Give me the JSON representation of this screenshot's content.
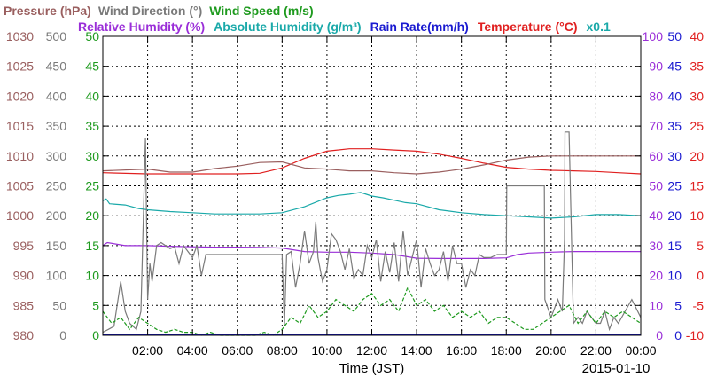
{
  "chart_data": {
    "type": "line",
    "header_row1": [
      {
        "text": "Pressure (hPa)",
        "color": "#9a5f5f"
      },
      {
        "text": "Wind Direction (°)",
        "color": "#7a7a7a"
      },
      {
        "text": "Wind Speed (m/s)",
        "color": "#1e9a1e"
      }
    ],
    "header_row2": [
      {
        "text": "Relative Humidity (%)",
        "color": "#9a2ed8"
      },
      {
        "text": "Absolute Humidity (g/m³)",
        "color": "#1aa9a9"
      },
      {
        "text": "Rain Rate(mm/h)",
        "color": "#1a1ad0"
      },
      {
        "text": "Temperature (°C)",
        "color": "#e02020"
      },
      {
        "text": "x0.1",
        "color": "#1aa9a9"
      }
    ],
    "xlabel": "Time (JST)",
    "date_label": "2015-01-10",
    "x_ticks": [
      "02:00",
      "04:00",
      "06:00",
      "08:00",
      "10:00",
      "12:00",
      "14:00",
      "16:00",
      "18:00",
      "20:00",
      "22:00",
      "00:00"
    ],
    "x_range_hours": [
      0,
      24
    ],
    "grid": true,
    "axes": {
      "pressure": {
        "color": "#9a5f5f",
        "range": [
          980,
          1030
        ],
        "ticks": [
          "980",
          "985",
          "990",
          "995",
          "1000",
          "1005",
          "1010",
          "1015",
          "1020",
          "1025",
          "1030"
        ]
      },
      "wind_direction": {
        "color": "#7a7a7a",
        "range": [
          0,
          500
        ],
        "ticks": [
          "0",
          "50",
          "100",
          "150",
          "200",
          "250",
          "300",
          "350",
          "400",
          "450",
          "500"
        ]
      },
      "wind_speed": {
        "color": "#1e9a1e",
        "range": [
          0,
          50
        ],
        "ticks": [
          "0",
          "5",
          "10",
          "15",
          "20",
          "25",
          "30",
          "35",
          "40",
          "45",
          "50"
        ]
      },
      "relative_humidity": {
        "color": "#9a2ed8",
        "range": [
          0,
          100
        ],
        "ticks": [
          "0",
          "10",
          "20",
          "30",
          "40",
          "50",
          "60",
          "70",
          "80",
          "90",
          "100"
        ]
      },
      "rain_rate": {
        "color": "#1a1ad0",
        "range": [
          0,
          50
        ],
        "ticks": [
          "0",
          "5",
          "10",
          "15",
          "20",
          "25",
          "30",
          "35",
          "40",
          "45",
          "50"
        ]
      },
      "temperature": {
        "color": "#e02020",
        "range": [
          -10,
          40
        ],
        "ticks": [
          "-10",
          "-5",
          "0",
          "5",
          "10",
          "15",
          "20",
          "25",
          "30",
          "35",
          "40"
        ]
      }
    },
    "series": [
      {
        "name": "Temperature (°C)",
        "axis": "temperature",
        "color": "#e02020",
        "style": "line",
        "x": [
          0,
          2,
          4,
          6,
          7,
          8,
          9,
          10,
          11,
          12,
          13,
          14,
          15,
          16,
          17,
          18,
          19,
          20,
          21,
          22,
          23,
          24
        ],
        "y": [
          17.2,
          17.0,
          17.0,
          17.0,
          17.1,
          18.0,
          19.6,
          20.8,
          21.2,
          21.2,
          21.0,
          20.8,
          20.3,
          19.6,
          18.8,
          18.1,
          17.8,
          17.6,
          17.5,
          17.4,
          17.2,
          17.0
        ]
      },
      {
        "name": "Pressure (hPa)",
        "axis": "pressure",
        "color": "#9a5f5f",
        "style": "line",
        "x": [
          0,
          2,
          3,
          4,
          5,
          6,
          7,
          8,
          9,
          10,
          11,
          12,
          13,
          14,
          15,
          16,
          17,
          18,
          19,
          20,
          21,
          22,
          23,
          24
        ],
        "y": [
          1007.5,
          1007.8,
          1007.3,
          1007.3,
          1007.9,
          1008.3,
          1008.9,
          1009.0,
          1008.0,
          1007.8,
          1007.5,
          1007.5,
          1007.2,
          1007.0,
          1007.3,
          1007.8,
          1008.5,
          1009.3,
          1009.8,
          1010.0,
          1010.0,
          1010.0,
          1010.0,
          1010.0
        ]
      },
      {
        "name": "Absolute Humidity (g/m³) x0.1",
        "axis": "wind_speed",
        "color": "#1aa9a9",
        "style": "line",
        "x": [
          0,
          0.15,
          0.3,
          1,
          1.6,
          2,
          3,
          4,
          5,
          6,
          7,
          8,
          9,
          10,
          10.5,
          11,
          11.5,
          12,
          12.5,
          13,
          13.5,
          14,
          15,
          16,
          17,
          18,
          19,
          20,
          21,
          22,
          23,
          24
        ],
        "y": [
          22.5,
          22.8,
          22.0,
          21.8,
          21.2,
          21.0,
          20.7,
          20.5,
          20.3,
          20.3,
          20.3,
          20.5,
          21.5,
          23.0,
          23.4,
          23.6,
          23.9,
          23.3,
          23.0,
          22.6,
          22.2,
          22.0,
          21.0,
          20.5,
          20.2,
          20.0,
          19.8,
          19.6,
          19.8,
          20.2,
          20.2,
          20.0
        ]
      },
      {
        "name": "Relative Humidity (%)",
        "axis": "relative_humidity",
        "color": "#9a2ed8",
        "style": "line",
        "x": [
          0,
          0.2,
          1,
          2,
          3,
          4,
          5,
          6,
          7,
          8,
          8.5,
          9,
          10,
          11,
          12,
          13,
          14,
          15,
          16,
          17,
          18,
          18.5,
          19,
          20,
          21,
          22,
          23,
          24
        ],
        "y": [
          30,
          31,
          30,
          30,
          29.8,
          29.6,
          29.5,
          29.5,
          29.4,
          29.2,
          28.6,
          28,
          27.8,
          27.8,
          27.5,
          27,
          25.8,
          25.7,
          25.7,
          25.7,
          25.9,
          27,
          27.5,
          27.8,
          28,
          28,
          28,
          28
        ]
      },
      {
        "name": "Wind Direction (°)",
        "axis": "wind_direction",
        "color": "#7a7a7a",
        "style": "line",
        "x": [
          0,
          0.25,
          0.5,
          0.8,
          1,
          1.2,
          1.5,
          1.7,
          1.9,
          2.0,
          2.1,
          2.2,
          2.4,
          2.6,
          2.8,
          3.0,
          3.2,
          3.4,
          3.6,
          3.8,
          4.0,
          4.2,
          4.4,
          4.6,
          5.0,
          5.5,
          6.0,
          7.0,
          8.0,
          8.1,
          8.2,
          8.4,
          8.6,
          8.8,
          9.0,
          9.2,
          9.4,
          9.5,
          9.6,
          9.8,
          10.0,
          10.2,
          10.4,
          10.6,
          10.8,
          11.0,
          11.2,
          11.4,
          11.6,
          11.8,
          12.0,
          12.2,
          12.4,
          12.6,
          12.8,
          13.0,
          13.2,
          13.4,
          13.6,
          13.8,
          14.0,
          14.2,
          14.4,
          14.6,
          14.8,
          15.0,
          15.2,
          15.4,
          15.6,
          15.8,
          16.0,
          16.2,
          16.4,
          16.6,
          16.8,
          17.0,
          17.3,
          17.6,
          18.0,
          18.02,
          18.5,
          19.0,
          19.5,
          19.7,
          19.72,
          20.0,
          20.3,
          20.5,
          20.6,
          20.62,
          20.8,
          21.0,
          21.2,
          21.4,
          21.6,
          21.8,
          22.0,
          22.2,
          22.4,
          22.6,
          22.8,
          23.0,
          23.3,
          23.6,
          24.0
        ],
        "y": [
          5,
          10,
          15,
          90,
          40,
          20,
          10,
          40,
          330,
          60,
          120,
          90,
          150,
          155,
          150,
          145,
          148,
          120,
          150,
          140,
          130,
          150,
          100,
          135,
          135,
          135,
          135,
          135,
          135,
          15,
          135,
          140,
          80,
          120,
          175,
          120,
          140,
          190,
          130,
          90,
          110,
          170,
          160,
          140,
          110,
          145,
          95,
          110,
          100,
          150,
          130,
          160,
          90,
          140,
          105,
          155,
          90,
          175,
          100,
          130,
          160,
          80,
          145,
          120,
          100,
          110,
          140,
          90,
          150,
          120,
          120,
          80,
          110,
          100,
          135,
          130,
          130,
          135,
          135,
          250,
          250,
          250,
          250,
          250,
          60,
          30,
          60,
          40,
          160,
          340,
          340,
          20,
          30,
          20,
          40,
          30,
          20,
          20,
          40,
          10,
          30,
          20,
          40,
          60,
          30
        ]
      },
      {
        "name": "Wind Speed (m/s)",
        "axis": "wind_speed",
        "color": "#1e9a1e",
        "style": "dashed",
        "x": [
          0,
          0.4,
          0.8,
          1.2,
          1.6,
          2.0,
          2.4,
          2.8,
          3.2,
          3.6,
          4.0,
          4.4,
          4.8,
          5.2,
          5.6,
          6.0,
          6.4,
          6.8,
          7.2,
          7.6,
          8.0,
          8.4,
          8.8,
          9.2,
          9.6,
          10.0,
          10.4,
          10.8,
          11.2,
          11.6,
          12.0,
          12.4,
          12.8,
          13.2,
          13.6,
          14.0,
          14.4,
          14.8,
          15.2,
          15.6,
          16.0,
          16.4,
          16.8,
          17.2,
          17.6,
          18.0,
          18.4,
          18.8,
          19.2,
          19.6,
          20.0,
          20.4,
          20.8,
          21.2,
          21.6,
          22.0,
          22.4,
          22.8,
          23.2,
          23.6,
          24.0
        ],
        "y": [
          4,
          2,
          3,
          1,
          3,
          2,
          1,
          0.5,
          1,
          0.5,
          0.5,
          0,
          0.5,
          0,
          0,
          0,
          0,
          0,
          0.5,
          0,
          1,
          3,
          2,
          5,
          3,
          4,
          6,
          5,
          4,
          6,
          7,
          5,
          6,
          4,
          8,
          5,
          6,
          4,
          5,
          3,
          4,
          3,
          4,
          2,
          3,
          3,
          2,
          1,
          1,
          2,
          3,
          4,
          5,
          2,
          4,
          2,
          4,
          3,
          4,
          3,
          2
        ]
      }
    ]
  }
}
